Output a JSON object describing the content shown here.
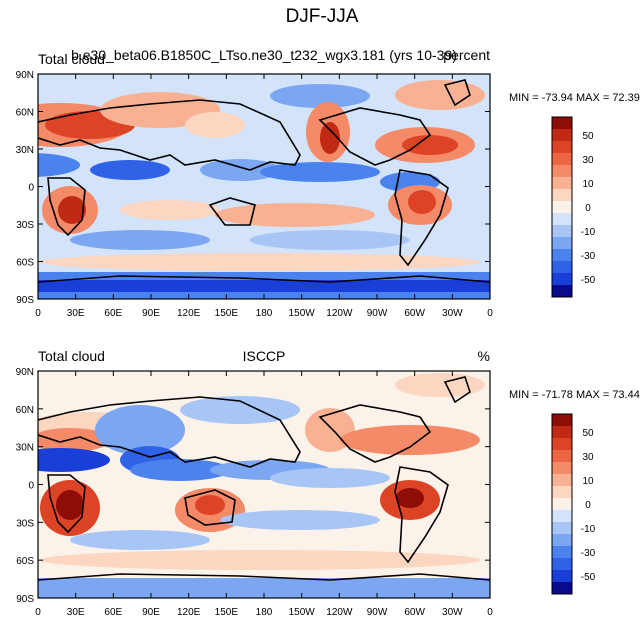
{
  "page_title": "DJF-JJA",
  "chart_data": [
    {
      "type": "heatmap",
      "left_title": "Total cloud",
      "center_title": "b.e30_beta06.B1850C_LTso.ne30_t232_wgx3.181 (yrs 10-39)",
      "right_title": "percent",
      "stats": "MIN = -73.94 MAX =  72.39",
      "xlim": [
        0,
        360
      ],
      "ylim": [
        -90,
        90
      ],
      "x_ticks": [
        "0",
        "30E",
        "60E",
        "90E",
        "120E",
        "150E",
        "180",
        "150W",
        "120W",
        "90W",
        "60W",
        "30W",
        "0"
      ],
      "y_ticks": [
        "90N",
        "60N",
        "30N",
        "0",
        "30S",
        "60S",
        "90S"
      ],
      "colorbar_levels": [
        -60,
        -50,
        -40,
        -30,
        -20,
        -10,
        -5,
        0,
        5,
        10,
        20,
        30,
        40,
        50,
        60
      ],
      "colorbar_labels": [
        "50",
        "30",
        "10",
        "0",
        "-10",
        "-30",
        "-50"
      ]
    },
    {
      "type": "heatmap",
      "left_title": "Total cloud",
      "center_title": "ISCCP",
      "right_title": "%",
      "stats": "MIN = -71.78 MAX =  73.44",
      "xlim": [
        0,
        360
      ],
      "ylim": [
        -90,
        90
      ],
      "x_ticks": [
        "0",
        "30E",
        "60E",
        "90E",
        "120E",
        "150E",
        "180",
        "150W",
        "120W",
        "90W",
        "60W",
        "30W",
        "0"
      ],
      "y_ticks": [
        "90N",
        "60N",
        "30N",
        "0",
        "30S",
        "60S",
        "90S"
      ],
      "colorbar_levels": [
        -60,
        -50,
        -40,
        -30,
        -20,
        -10,
        -5,
        0,
        5,
        10,
        20,
        30,
        40,
        50,
        60
      ],
      "colorbar_labels": [
        "50",
        "30",
        "10",
        "0",
        "-10",
        "-30",
        "-50"
      ]
    }
  ],
  "colors": {
    "scale": [
      "#0a0a8c",
      "#1a3fd9",
      "#2f62e6",
      "#4a82ee",
      "#7aa6f2",
      "#a7c6f6",
      "#d2e3fa",
      "#fbf3ea",
      "#fcd6c0",
      "#f9b194",
      "#f48a68",
      "#ec6644",
      "#dd4426",
      "#c02a14",
      "#8e0d06"
    ]
  }
}
